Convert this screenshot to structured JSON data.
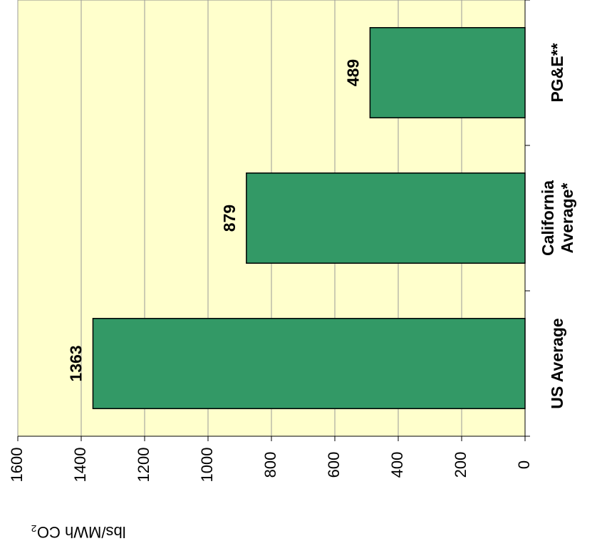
{
  "chart_data": {
    "type": "bar",
    "orientation": "rotated",
    "categories": [
      "US Average",
      "California Average*",
      "PG&E**"
    ],
    "values": [
      1363,
      879,
      489
    ],
    "color": "#339966",
    "ylabel": "lbs/MWh CO₂",
    "ylim": [
      0,
      1600
    ],
    "yticks": [
      0,
      200,
      400,
      600,
      800,
      1000,
      1200,
      1400,
      1600
    ],
    "grid": true,
    "background": "#ffffcc"
  }
}
